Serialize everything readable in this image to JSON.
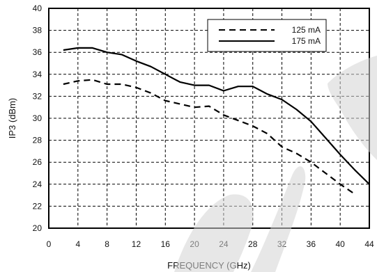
{
  "chart_data": {
    "type": "line",
    "xlabel": "FREQUENCY (GHz)",
    "ylabel": "IP3 (dBm)",
    "xlim": [
      0,
      44
    ],
    "ylim": [
      20,
      40
    ],
    "x_ticks": [
      "0",
      "4",
      "8",
      "12",
      "16",
      "20",
      "24",
      "28",
      "32",
      "36",
      "40",
      "44"
    ],
    "y_ticks": [
      "20",
      "22",
      "24",
      "26",
      "28",
      "30",
      "32",
      "34",
      "36",
      "38",
      "40"
    ],
    "grid": true,
    "grid_style": "dashed",
    "legend_position": "top-right",
    "series": [
      {
        "name": "125 mA",
        "style": "dashed",
        "color": "#000000",
        "x": [
          2,
          4,
          6,
          8,
          10,
          12,
          14,
          16,
          18,
          20,
          22,
          24,
          26,
          28,
          30,
          32,
          34,
          36,
          38,
          40,
          42
        ],
        "y": [
          33.1,
          33.4,
          33.5,
          33.1,
          33.1,
          32.8,
          32.3,
          31.6,
          31.3,
          31.0,
          31.1,
          30.3,
          29.8,
          29.3,
          28.6,
          27.4,
          26.8,
          26.0,
          25.0,
          24.0,
          23.1
        ]
      },
      {
        "name": "175 mA",
        "style": "solid",
        "color": "#000000",
        "x": [
          2,
          4,
          6,
          8,
          10,
          12,
          14,
          16,
          18,
          20,
          22,
          24,
          26,
          28,
          30,
          32,
          34,
          36,
          38,
          40,
          42,
          44
        ],
        "y": [
          36.2,
          36.4,
          36.4,
          36.0,
          35.8,
          35.2,
          34.7,
          34.0,
          33.3,
          33.0,
          33.0,
          32.5,
          32.9,
          32.9,
          32.2,
          31.7,
          30.8,
          29.7,
          28.2,
          26.7,
          25.3,
          24.0
        ]
      }
    ]
  }
}
